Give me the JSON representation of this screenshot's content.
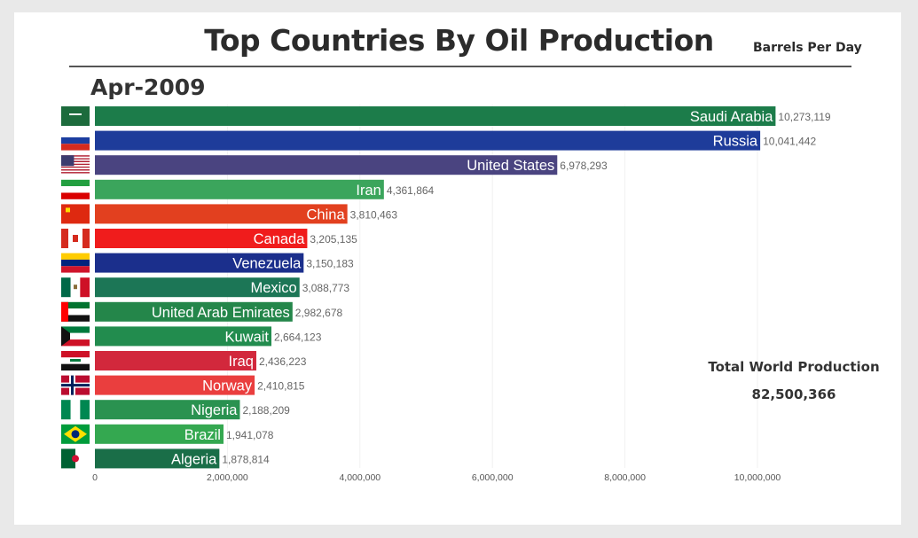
{
  "title": "Top Countries By Oil Production",
  "unit_label": "Barrels Per Day",
  "period": "Apr-2009",
  "total": {
    "label": "Total World Production",
    "value": "82,500,366"
  },
  "chart_data": {
    "type": "bar",
    "orientation": "horizontal",
    "title": "Top Countries By Oil Production",
    "xlabel": "",
    "ylabel": "",
    "xlim": [
      0,
      10500000
    ],
    "x_ticks": [
      0,
      2000000,
      4000000,
      6000000,
      8000000,
      10000000
    ],
    "x_tick_labels": [
      "0",
      "2,000,000",
      "4,000,000",
      "6,000,000",
      "8,000,000",
      "10,000,000"
    ],
    "grid": true,
    "categories": [
      "Saudi Arabia",
      "Russia",
      "United States",
      "Iran",
      "China",
      "Canada",
      "Venezuela",
      "Mexico",
      "United Arab Emirates",
      "Kuwait",
      "Iraq",
      "Norway",
      "Nigeria",
      "Brazil",
      "Algeria"
    ],
    "values": [
      10273119,
      10041442,
      6978293,
      4361864,
      3810463,
      3205135,
      3150183,
      3088773,
      2982678,
      2664123,
      2436223,
      2410815,
      2188209,
      1941078,
      1878814
    ],
    "value_labels": [
      "10,273,119",
      "10,041,442",
      "6,978,293",
      "4,361,864",
      "3,810,463",
      "3,205,135",
      "3,150,183",
      "3,088,773",
      "2,982,678",
      "2,664,123",
      "2,436,223",
      "2,410,815",
      "2,188,209",
      "1,941,078",
      "1,878,814"
    ],
    "colors": [
      "#1c7c4a",
      "#1e3c9a",
      "#4a4480",
      "#3ba55c",
      "#e2401f",
      "#f01c1c",
      "#1b2f8c",
      "#1c7656",
      "#24864a",
      "#228c4e",
      "#d2283c",
      "#ea3e3e",
      "#2a9250",
      "#34a850",
      "#1a6e48"
    ],
    "flags": [
      "saudi-arabia-flag",
      "russia-flag",
      "united-states-flag",
      "iran-flag",
      "china-flag",
      "canada-flag",
      "venezuela-flag",
      "mexico-flag",
      "uae-flag",
      "kuwait-flag",
      "iraq-flag",
      "norway-flag",
      "nigeria-flag",
      "brazil-flag",
      "algeria-flag"
    ]
  }
}
